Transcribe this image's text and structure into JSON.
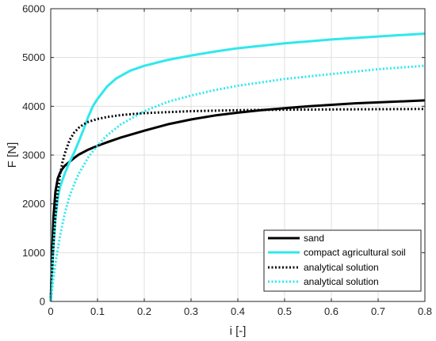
{
  "chart_data": {
    "type": "line",
    "xlabel": "i [-]",
    "ylabel": "F [N]",
    "xlim": [
      0,
      0.8
    ],
    "ylim": [
      0,
      6000
    ],
    "x_ticks": [
      0,
      0.1,
      0.2,
      0.3,
      0.4,
      0.5,
      0.6,
      0.7,
      0.8
    ],
    "x_tick_labels": [
      "0",
      "0.1",
      "0.2",
      "0.3",
      "0.4",
      "0.5",
      "0.6",
      "0.7",
      "0.8"
    ],
    "y_ticks": [
      0,
      1000,
      2000,
      3000,
      4000,
      5000,
      6000
    ],
    "y_tick_labels": [
      "0",
      "1000",
      "2000",
      "3000",
      "4000",
      "5000",
      "6000"
    ],
    "grid": true,
    "legend_position": "bottom-right",
    "series": [
      {
        "name": "sand",
        "color": "#000000",
        "style": "solid",
        "x": [
          0,
          0.003,
          0.006,
          0.01,
          0.015,
          0.02,
          0.025,
          0.03,
          0.04,
          0.05,
          0.06,
          0.08,
          0.1,
          0.12,
          0.15,
          0.2,
          0.25,
          0.3,
          0.35,
          0.4,
          0.45,
          0.5,
          0.55,
          0.6,
          0.65,
          0.7,
          0.75,
          0.8
        ],
        "y": [
          0,
          1000,
          1750,
          2250,
          2520,
          2640,
          2720,
          2780,
          2860,
          2940,
          3010,
          3110,
          3190,
          3260,
          3360,
          3500,
          3630,
          3730,
          3810,
          3870,
          3920,
          3960,
          4000,
          4030,
          4060,
          4080,
          4100,
          4120
        ]
      },
      {
        "name": "compact agricultural soil",
        "color": "#2fe8ec",
        "style": "solid",
        "x": [
          0,
          0.005,
          0.01,
          0.015,
          0.02,
          0.03,
          0.04,
          0.05,
          0.06,
          0.07,
          0.08,
          0.09,
          0.1,
          0.12,
          0.14,
          0.17,
          0.2,
          0.25,
          0.3,
          0.35,
          0.4,
          0.45,
          0.5,
          0.55,
          0.6,
          0.65,
          0.7,
          0.75,
          0.8
        ],
        "y": [
          0,
          1000,
          1700,
          2100,
          2350,
          2620,
          2850,
          3050,
          3280,
          3520,
          3780,
          4000,
          4150,
          4400,
          4570,
          4730,
          4830,
          4950,
          5040,
          5120,
          5190,
          5240,
          5290,
          5330,
          5370,
          5400,
          5430,
          5460,
          5490
        ]
      },
      {
        "name": "analytical solution",
        "color": "#000000",
        "style": "dotted",
        "x": [
          0,
          0.003,
          0.006,
          0.01,
          0.015,
          0.02,
          0.025,
          0.03,
          0.04,
          0.05,
          0.06,
          0.07,
          0.08,
          0.1,
          0.12,
          0.15,
          0.2,
          0.25,
          0.3,
          0.4,
          0.5,
          0.6,
          0.7,
          0.8
        ],
        "y": [
          0,
          650,
          1200,
          1750,
          2250,
          2600,
          2850,
          3030,
          3300,
          3460,
          3560,
          3630,
          3680,
          3740,
          3780,
          3820,
          3860,
          3880,
          3900,
          3920,
          3930,
          3935,
          3940,
          3945
        ]
      },
      {
        "name": "analytical solution",
        "color": "#2fe8ec",
        "style": "dotted",
        "x": [
          0,
          0.005,
          0.01,
          0.02,
          0.03,
          0.04,
          0.05,
          0.06,
          0.08,
          0.1,
          0.12,
          0.15,
          0.2,
          0.25,
          0.3,
          0.35,
          0.4,
          0.5,
          0.6,
          0.7,
          0.8
        ],
        "y": [
          0,
          420,
          780,
          1350,
          1800,
          2150,
          2400,
          2620,
          2950,
          3200,
          3400,
          3630,
          3900,
          4090,
          4220,
          4330,
          4420,
          4560,
          4660,
          4760,
          4830
        ]
      }
    ]
  }
}
